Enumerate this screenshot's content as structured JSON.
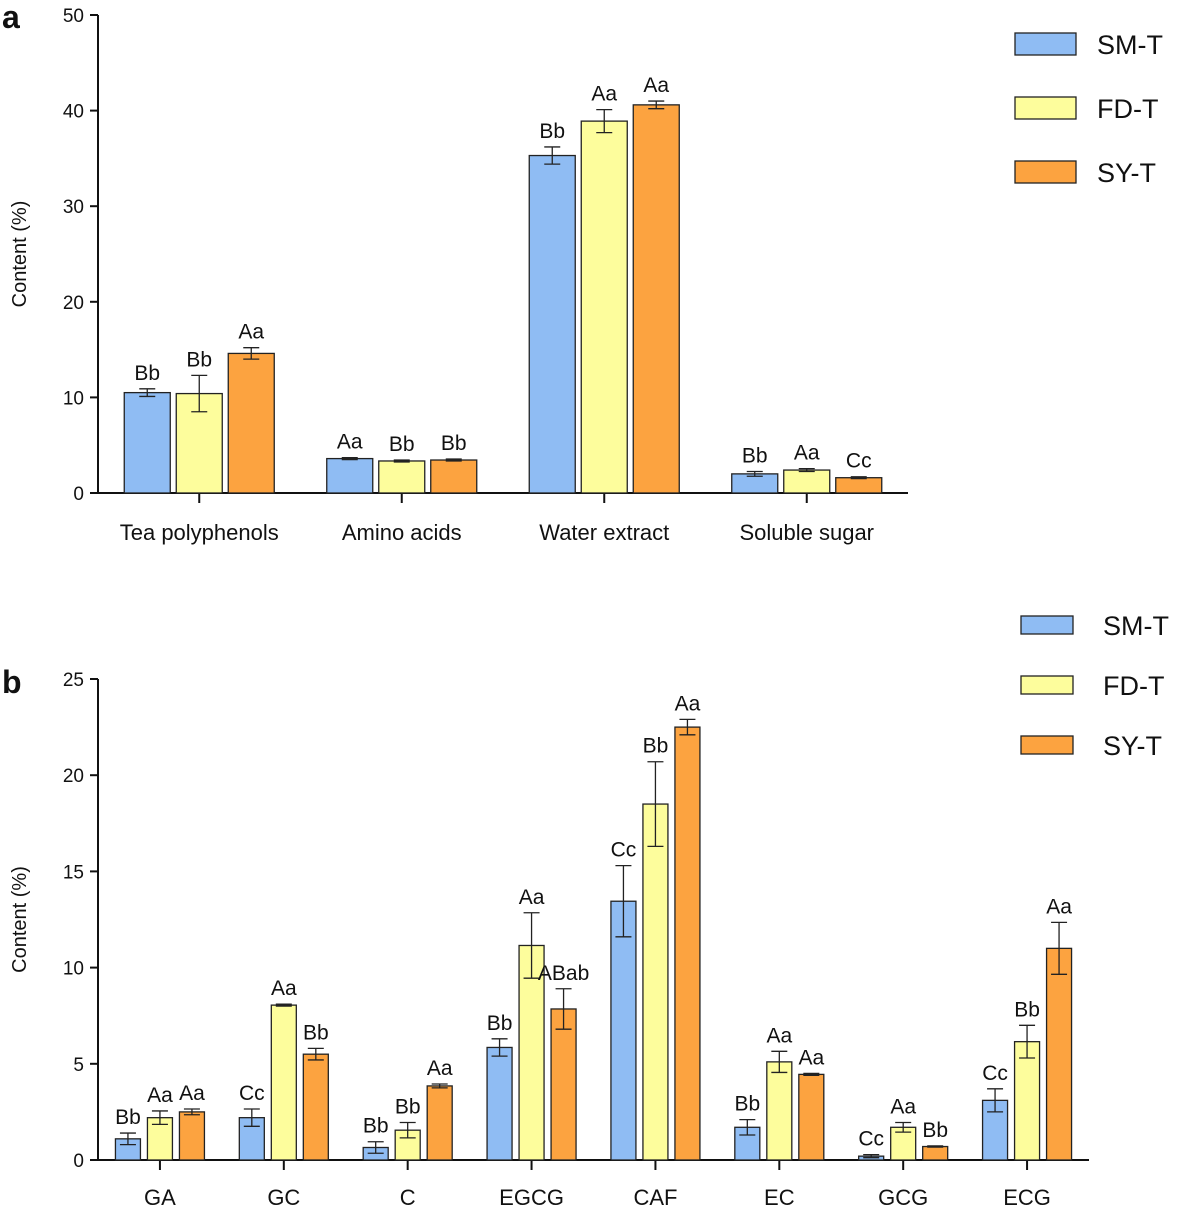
{
  "colors": {
    "SM-T": "#8fbcf3",
    "FD-T": "#fdfd9c",
    "SY-T": "#fca340",
    "axis": "#111111"
  },
  "chart_data": [
    {
      "type": "bar",
      "panel": "a",
      "ylabel": "Content (%)",
      "ylim": [
        0,
        50
      ],
      "yticks": [
        0,
        10,
        20,
        30,
        40,
        50
      ],
      "categories": [
        "Tea polyphenols",
        "Amino acids",
        "Water extract",
        "Soluble sugar"
      ],
      "legend_position": "top-right",
      "series": [
        {
          "name": "SM-T",
          "values": [
            10.5,
            3.6,
            35.3,
            2.0
          ],
          "errors": [
            0.4,
            0.1,
            0.9,
            0.25
          ],
          "labels": [
            "Bb",
            "Aa",
            "Bb",
            "Bb"
          ]
        },
        {
          "name": "FD-T",
          "values": [
            10.4,
            3.35,
            38.9,
            2.4
          ],
          "errors": [
            1.9,
            0.1,
            1.2,
            0.15
          ],
          "labels": [
            "Bb",
            "Bb",
            "Aa",
            "Aa"
          ]
        },
        {
          "name": "SY-T",
          "values": [
            14.6,
            3.45,
            40.6,
            1.6
          ],
          "errors": [
            0.6,
            0.1,
            0.4,
            0.1
          ],
          "labels": [
            "Aa",
            "Bb",
            "Aa",
            "Cc"
          ]
        }
      ]
    },
    {
      "type": "bar",
      "panel": "b",
      "ylabel": "Content (%)",
      "ylim": [
        0,
        25
      ],
      "yticks": [
        0,
        5,
        10,
        15,
        20,
        25
      ],
      "categories": [
        "GA",
        "GC",
        "C",
        "EGCG",
        "CAF",
        "EC",
        "GCG",
        "ECG"
      ],
      "legend_position": "top-right",
      "series": [
        {
          "name": "SM-T",
          "values": [
            1.1,
            2.2,
            0.65,
            5.85,
            13.45,
            1.7,
            0.2,
            3.1
          ],
          "errors": [
            0.3,
            0.45,
            0.3,
            0.45,
            1.85,
            0.4,
            0.08,
            0.6
          ],
          "labels": [
            "Bb",
            "Cc",
            "Bb",
            "Bb",
            "Cc",
            "Bb",
            "Cc",
            "Cc"
          ]
        },
        {
          "name": "FD-T",
          "values": [
            2.2,
            8.05,
            1.55,
            11.15,
            18.5,
            5.1,
            1.7,
            6.15
          ],
          "errors": [
            0.35,
            0.05,
            0.4,
            1.7,
            2.2,
            0.55,
            0.25,
            0.85
          ],
          "labels": [
            "Aa",
            "Aa",
            "Bb",
            "Aa",
            "Bb",
            "Aa",
            "Aa",
            "Bb"
          ]
        },
        {
          "name": "SY-T",
          "values": [
            2.5,
            5.5,
            3.85,
            7.85,
            22.5,
            4.45,
            0.7,
            11.0
          ],
          "errors": [
            0.15,
            0.3,
            0.1,
            1.05,
            0.4,
            0.05,
            0.03,
            1.35
          ],
          "labels": [
            "Aa",
            "Bb",
            "Aa",
            "ABab",
            "Aa",
            "Aa",
            "Bb",
            "Aa"
          ]
        }
      ]
    }
  ]
}
